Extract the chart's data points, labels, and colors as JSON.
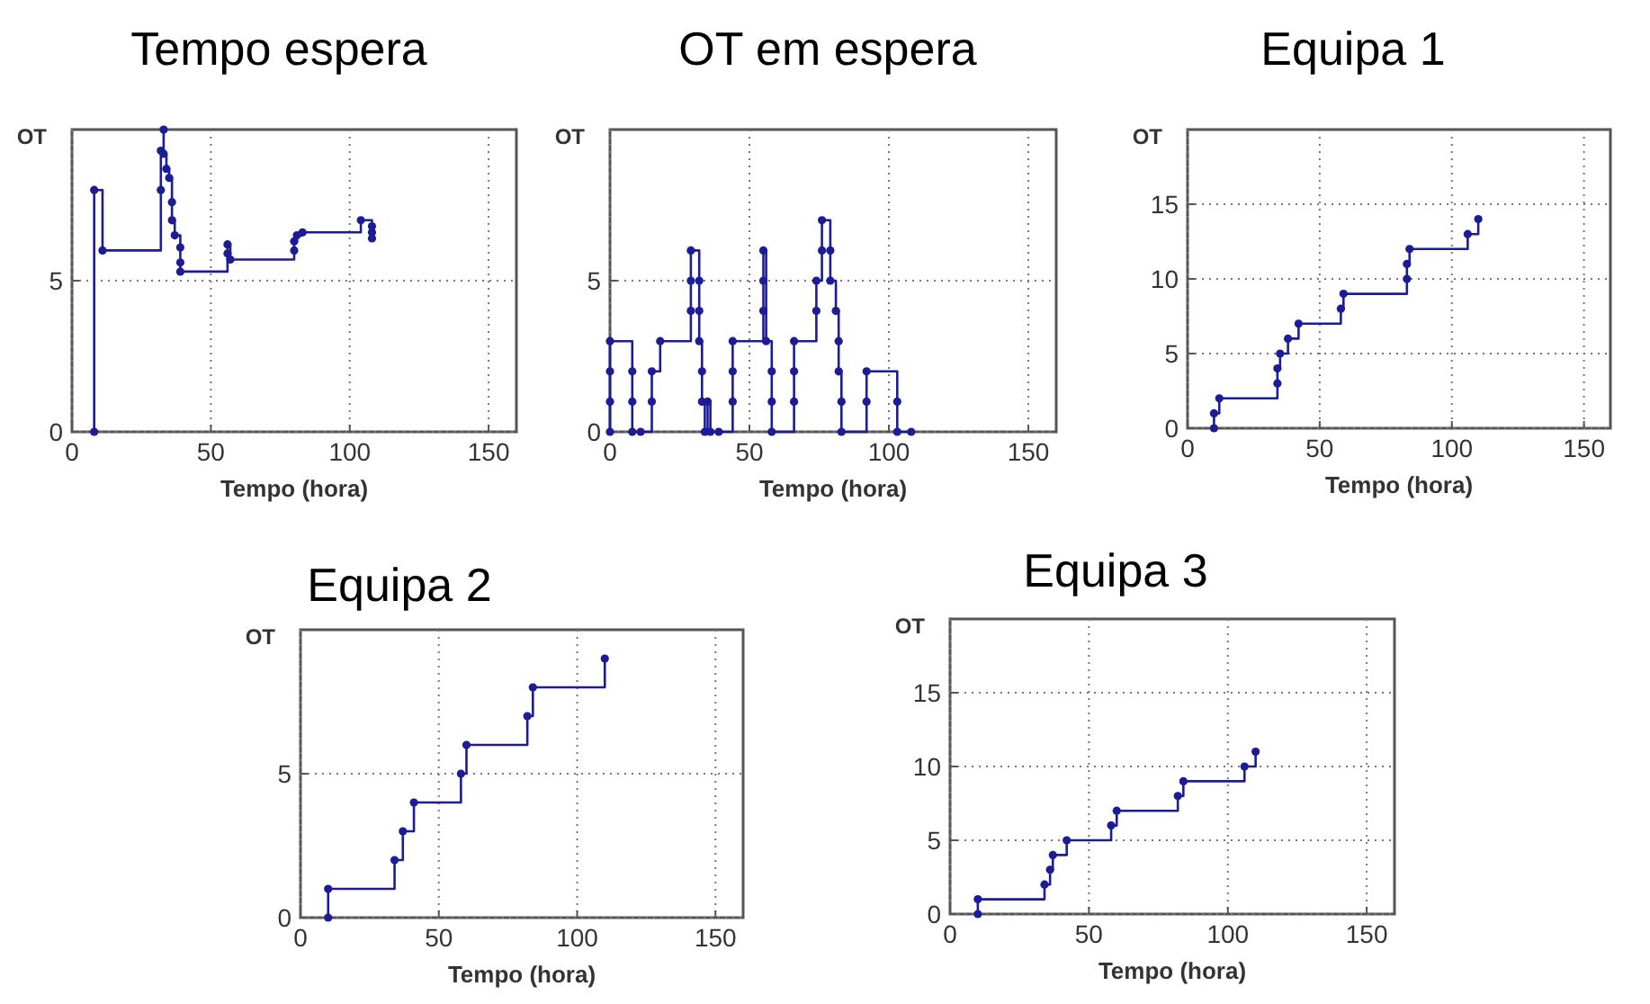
{
  "chart_data": [
    {
      "type": "step",
      "title": "Tempo espera",
      "xlabel": "Tempo (hora)",
      "ylabel": "OT",
      "xlim": [
        0,
        160
      ],
      "ylim": [
        0,
        10
      ],
      "xticks": [
        0,
        50,
        100,
        150
      ],
      "yticks": [
        0,
        5
      ],
      "grid": true,
      "marker": "circle",
      "line_style": "solid",
      "tick_labels": "xy",
      "series": [
        {
          "color": "#1c1c96",
          "x": [
            8,
            8,
            11,
            32,
            32,
            33,
            33,
            34,
            35,
            36,
            36,
            37,
            39,
            39,
            39,
            56,
            56,
            57,
            80,
            80,
            81,
            83,
            104,
            108,
            108,
            108
          ],
          "values": [
            0,
            8,
            6,
            8,
            9.3,
            10,
            9.2,
            8.7,
            8.4,
            7.6,
            7,
            6.5,
            6.1,
            5.6,
            5.3,
            5.9,
            6.2,
            5.7,
            6,
            6.3,
            6.5,
            6.6,
            7,
            6.8,
            6.6,
            6.4
          ]
        }
      ]
    },
    {
      "type": "step",
      "title": "OT em espera",
      "xlabel": "Tempo (hora)",
      "ylabel": "OT",
      "xlim": [
        0,
        160
      ],
      "ylim": [
        0,
        10
      ],
      "xticks": [
        0,
        50,
        100,
        150
      ],
      "yticks": [
        0,
        5
      ],
      "grid": true,
      "marker": "circle",
      "line_style": "solid",
      "series": [
        {
          "color": "#1c1c96",
          "x": [
            0,
            0,
            0,
            0,
            8,
            8,
            8,
            11,
            15,
            15,
            18,
            29,
            29,
            29,
            32,
            32,
            32,
            33,
            33,
            34,
            35,
            36,
            39,
            44,
            44,
            44,
            55,
            55,
            55,
            56,
            58,
            58,
            58,
            66,
            66,
            66,
            74,
            74,
            76,
            76,
            79,
            79,
            81,
            82,
            82,
            83,
            83,
            92,
            92,
            103,
            103,
            108
          ],
          "values": [
            0,
            1,
            2,
            3,
            2,
            1,
            0,
            0,
            1,
            2,
            3,
            4,
            5,
            6,
            5,
            4,
            3,
            2,
            1,
            0,
            1,
            0,
            0,
            1,
            2,
            3,
            4,
            5,
            6,
            3,
            2,
            1,
            0,
            1,
            2,
            3,
            4,
            5,
            6,
            7,
            6,
            5,
            4,
            3,
            2,
            1,
            0,
            1,
            2,
            1,
            0,
            0
          ]
        }
      ]
    },
    {
      "type": "step",
      "title": "Equipa 1",
      "xlabel": "Tempo (hora)",
      "ylabel": "OT",
      "xlim": [
        0,
        160
      ],
      "ylim": [
        0,
        20
      ],
      "xticks": [
        0,
        50,
        100,
        150
      ],
      "yticks": [
        0,
        5,
        10,
        15
      ],
      "grid": true,
      "marker": "circle",
      "line_style": "solid",
      "series": [
        {
          "color": "#1c1c96",
          "x": [
            10,
            10,
            12,
            34,
            34,
            35,
            38,
            42,
            58,
            59,
            83,
            83,
            84,
            106,
            110
          ],
          "values": [
            0,
            1,
            2,
            3,
            4,
            5,
            6,
            7,
            8,
            9,
            10,
            11,
            12,
            13,
            14
          ]
        }
      ]
    },
    {
      "type": "step",
      "title": "Equipa 2",
      "xlabel": "Tempo (hora)",
      "ylabel": "OT",
      "xlim": [
        0,
        160
      ],
      "ylim": [
        0,
        10
      ],
      "xticks": [
        0,
        50,
        100,
        150
      ],
      "yticks": [
        0,
        5
      ],
      "grid": true,
      "marker": "circle",
      "line_style": "solid",
      "series": [
        {
          "color": "#1c1c96",
          "x": [
            10,
            10,
            34,
            37,
            41,
            58,
            60,
            82,
            84,
            110
          ],
          "values": [
            0,
            1,
            2,
            3,
            4,
            5,
            6,
            7,
            8,
            9
          ]
        }
      ]
    },
    {
      "type": "step",
      "title": "Equipa 3",
      "xlabel": "Tempo (hora)",
      "ylabel": "OT",
      "xlim": [
        0,
        160
      ],
      "ylim": [
        0,
        20
      ],
      "xticks": [
        0,
        50,
        100,
        150
      ],
      "yticks": [
        0,
        5,
        10,
        15
      ],
      "grid": true,
      "marker": "circle",
      "line_style": "solid",
      "series": [
        {
          "color": "#1c1c96",
          "x": [
            10,
            10,
            34,
            36,
            37,
            42,
            58,
            60,
            82,
            84,
            106,
            110
          ],
          "values": [
            0,
            1,
            2,
            3,
            4,
            5,
            6,
            7,
            8,
            9,
            10,
            11
          ]
        }
      ]
    }
  ]
}
